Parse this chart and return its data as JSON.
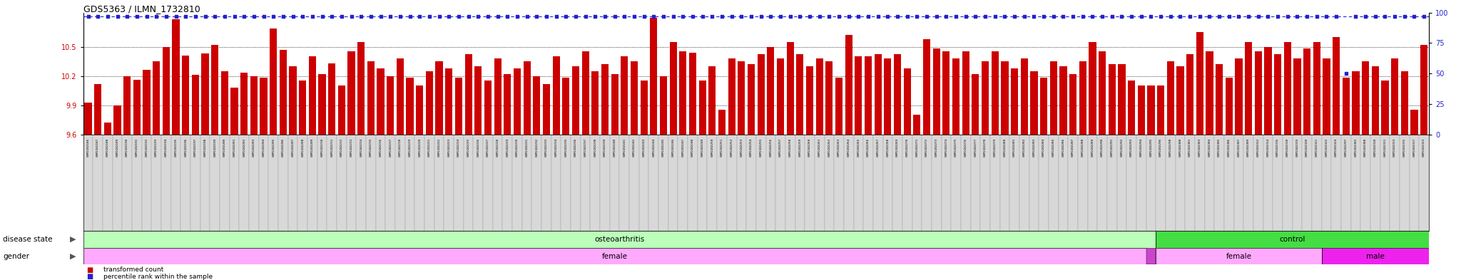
{
  "title": "GDS5363 / ILMN_1732810",
  "ylim_left": [
    9.6,
    10.85
  ],
  "ylim_right": [
    0,
    100
  ],
  "yticks_left": [
    9.6,
    9.9,
    10.2,
    10.5
  ],
  "yticks_right": [
    0,
    25,
    50,
    75,
    100
  ],
  "bar_color": "#cc0000",
  "dot_color": "#2222cc",
  "bg_color": "#ffffff",
  "disease_state_oa_color": "#bbffbb",
  "disease_state_ctrl_color": "#44dd44",
  "gender_female_color": "#ffaaff",
  "gender_male_color": "#ee22ee",
  "gender_male_oa_color": "#cc44cc",
  "samples": [
    "GSM1182186",
    "GSM1182187",
    "GSM1182188",
    "GSM1182189",
    "GSM1182190",
    "GSM1182191",
    "GSM1182192",
    "GSM1182193",
    "GSM1182194",
    "GSM1182195",
    "GSM1182196",
    "GSM1182197",
    "GSM1182198",
    "GSM1182199",
    "GSM1182200",
    "GSM1182201",
    "GSM1182202",
    "GSM1182203",
    "GSM1182204",
    "GSM1182205",
    "GSM1182206",
    "GSM1182207",
    "GSM1182208",
    "GSM1182209",
    "GSM1182210",
    "GSM1182211",
    "GSM1182212",
    "GSM1182213",
    "GSM1182214",
    "GSM1182215",
    "GSM1182216",
    "GSM1182217",
    "GSM1182218",
    "GSM1182219",
    "GSM1182220",
    "GSM1182221",
    "GSM1182222",
    "GSM1182223",
    "GSM1182224",
    "GSM1182225",
    "GSM1182226",
    "GSM1182227",
    "GSM1182228",
    "GSM1182229",
    "GSM1182230",
    "GSM1182231",
    "GSM1182232",
    "GSM1182233",
    "GSM1182234",
    "GSM1182235",
    "GSM1182236",
    "GSM1182237",
    "GSM1182238",
    "GSM1182239",
    "GSM1182240",
    "GSM1182241",
    "GSM1182242",
    "GSM1182243",
    "GSM1182244",
    "GSM1182245",
    "GSM1182246",
    "GSM1182247",
    "GSM1182248",
    "GSM1182249",
    "GSM1182250",
    "GSM1182251",
    "GSM1182252",
    "GSM1182253",
    "GSM1182254",
    "GSM1182255",
    "GSM1182256",
    "GSM1182257",
    "GSM1182258",
    "GSM1182259",
    "GSM1182260",
    "GSM1182261",
    "GSM1182262",
    "GSM1182263",
    "GSM1182264",
    "GSM1182265",
    "GSM1182266",
    "GSM1182267",
    "GSM1182268",
    "GSM1182269",
    "GSM1182270",
    "GSM1182271",
    "GSM1182272",
    "GSM1182273",
    "GSM1182274",
    "GSM1182275",
    "GSM1182276",
    "GSM1182277",
    "GSM1182278",
    "GSM1182279",
    "GSM1182280",
    "GSM1182281",
    "GSM1182282",
    "GSM1182283",
    "GSM1182284",
    "GSM1182285",
    "GSM1182286",
    "GSM1182287",
    "GSM1182288",
    "GSM1182289",
    "GSM1182290",
    "GSM1182291",
    "GSM1182292",
    "GSM1182293",
    "GSM1182294",
    "GSM1182295",
    "GSM1182296",
    "GSM1182298",
    "GSM1182300",
    "GSM1182301",
    "GSM1182303",
    "GSM1182304",
    "GSM1182305",
    "GSM1182306",
    "GSM1182307",
    "GSM1182309",
    "GSM1182312",
    "GSM1182314",
    "GSM1182316",
    "GSM1182318",
    "GSM1182319",
    "GSM1182320",
    "GSM1182321",
    "GSM1182322",
    "GSM1182324",
    "GSM1182297",
    "GSM1182302",
    "GSM1182308",
    "GSM1182310",
    "GSM1182311",
    "GSM1182313",
    "GSM1182315",
    "GSM1182317",
    "GSM1182323"
  ],
  "values": [
    9.93,
    10.12,
    9.72,
    9.9,
    10.2,
    10.16,
    10.26,
    10.35,
    10.5,
    10.78,
    10.41,
    10.21,
    10.43,
    10.52,
    10.25,
    10.08,
    10.23,
    10.2,
    10.18,
    10.69,
    10.47,
    10.3,
    10.15,
    10.4,
    10.22,
    10.33,
    10.1,
    10.45,
    10.55,
    10.35,
    10.28,
    10.2,
    10.38,
    10.18,
    10.1,
    10.25,
    10.35,
    10.28,
    10.18,
    10.42,
    10.3,
    10.15,
    10.38,
    10.22,
    10.28,
    10.35,
    10.2,
    10.12,
    10.4,
    10.18,
    10.3,
    10.45,
    10.25,
    10.32,
    10.22,
    10.4,
    10.35,
    10.15,
    10.8,
    10.2,
    10.55,
    10.45,
    10.44,
    10.15,
    10.3,
    9.85,
    10.38,
    10.35,
    10.32,
    10.42,
    10.5,
    10.38,
    10.55,
    10.42,
    10.3,
    10.38,
    10.35,
    10.18,
    10.62,
    10.4,
    10.4,
    10.42,
    10.38,
    10.42,
    10.28,
    9.8,
    10.58,
    10.48,
    10.45,
    10.38,
    10.45,
    10.22,
    10.35,
    10.45,
    10.35,
    10.28,
    10.38,
    10.25,
    10.18,
    10.35,
    10.3,
    10.22,
    10.35,
    10.55,
    10.45,
    10.32,
    10.32,
    10.15,
    10.1,
    10.1,
    10.1,
    10.35,
    10.3,
    10.42,
    10.65,
    10.45,
    10.32,
    10.18,
    10.38,
    10.55,
    10.45,
    10.5,
    10.42,
    10.55,
    10.38,
    10.48,
    10.55,
    10.38,
    10.6,
    10.18,
    10.25,
    10.35,
    10.3,
    10.15,
    10.38,
    10.25,
    9.85,
    10.52
  ],
  "percentile_value": 97,
  "percentile_low_idx": 129,
  "percentile_low_val": 50,
  "n_oa": 110,
  "n_ctrl": 28,
  "n_female_oa": 109,
  "n_male_oa": 1,
  "n_female_ctrl": 17,
  "n_male_ctrl": 11,
  "n_total": 138
}
